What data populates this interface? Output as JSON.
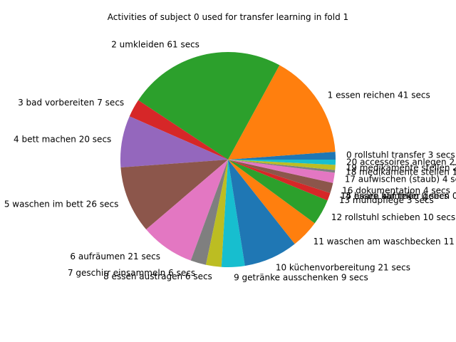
{
  "chart_data": {
    "type": "pie",
    "title": "Activities of subject 0 used for transfer learning in fold 1",
    "unit_suffix": "secs",
    "start_angle_deg": 0,
    "direction": "counterclockwise",
    "slices": [
      {
        "label": "0 rollstuhl transfer",
        "value": 3,
        "color": "#1f77b4"
      },
      {
        "label": "1 essen reichen",
        "value": 41,
        "color": "#ff7f0e"
      },
      {
        "label": "2 umkleiden",
        "value": 61,
        "color": "#2ca02c"
      },
      {
        "label": "3 bad vorbereiten",
        "value": 7,
        "color": "#d62728"
      },
      {
        "label": "4 bett machen",
        "value": 20,
        "color": "#9467bd"
      },
      {
        "label": "5 waschen im bett",
        "value": 26,
        "color": "#8c564b"
      },
      {
        "label": "6 aufräumen",
        "value": 21,
        "color": "#e377c2"
      },
      {
        "label": "7 geschirr einsammeln",
        "value": 6,
        "color": "#7f7f7f"
      },
      {
        "label": "8 essen austragen",
        "value": 6,
        "color": "#bcbd22"
      },
      {
        "label": "9 getränke ausschenken",
        "value": 9,
        "color": "#17becf"
      },
      {
        "label": "10 küchenvorbereitung",
        "value": 21,
        "color": "#1f77b4"
      },
      {
        "label": "11 waschen am waschbecken",
        "value": 11,
        "color": "#ff7f0e"
      },
      {
        "label": "12 rollstuhl schieben",
        "value": 10,
        "color": "#2ca02c"
      },
      {
        "label": "13 mundpflege",
        "value": 3,
        "color": "#d62728"
      },
      {
        "label": "14 haare kämmen",
        "value": 0,
        "color": "#9467bd"
      },
      {
        "label": "15 essen auf teller geben",
        "value": 0,
        "color": "#8c564b"
      },
      {
        "label": "16 dokumentation",
        "value": 4,
        "color": "#8c564b"
      },
      {
        "label": "17 aufwischen (staub)",
        "value": 4,
        "color": "#e377c2"
      },
      {
        "label": "18 medikamente stellen",
        "value": 1,
        "color": "#7f7f7f"
      },
      {
        "label": "19 medikamente stellen",
        "value": 2,
        "color": "#bcbd22"
      },
      {
        "label": "20 accessoires anlegen",
        "value": 2,
        "color": "#17becf"
      }
    ]
  }
}
